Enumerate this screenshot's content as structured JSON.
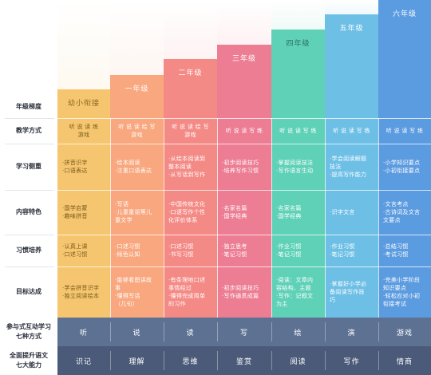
{
  "row_labels": {
    "grade_level": "年级梯度",
    "teaching_method": "教学方式",
    "learning_focus": "学习侧重",
    "content_features": "内容特色",
    "habit_building": "习惯培养",
    "goals": "目标达成",
    "interactive_methods": "参与式互动学习\n七种方式",
    "abilities": "全面提升语文\n七大能力"
  },
  "grades": [
    {
      "name": "幼小衔接",
      "color": "#f5c66f",
      "text_color": "#7a5b1e",
      "grade_text_color": "#8a6420",
      "teaching_method": "听 说 读 练\n游戏",
      "learning_focus": "·拼音识字\n·口语表达",
      "content_features": "·国学启蒙\n·趣味拼音",
      "habit_building": "·认真上课\n·口述习惯",
      "goals": "·学会拼音识字\n·独立阅读绘本"
    },
    {
      "name": "一年级",
      "color": "#f9a77e",
      "text_color": "#ffffff",
      "grade_text_color": "#ffffff",
      "teaching_method": "听 说 读 绘 写\n游戏",
      "learning_focus": "·绘本阅读\n·注重口语表达",
      "content_features": "·写话\n·儿童童谣等儿\n  童文学",
      "habit_building": "·口述习惯\n·倾色认知",
      "goals": "·能够看图讲故\n  事\n·懂得写话\n  （几句）"
    },
    {
      "name": "二年级",
      "color": "#f48a85",
      "text_color": "#ffffff",
      "grade_text_color": "#ffffff",
      "teaching_method": "听 说 读 绘 写\n游戏",
      "learning_focus": "·从绘本阅读到\n  整本阅读\n·从写话到写作",
      "content_features": "·中国传统文化\n·口语写作个性\n  化评价体系",
      "habit_building": "·口述习惯\n·书写习惯",
      "goals": "·有条理地口述\n  事情经过\n·懂得完成简单\n  的习作"
    },
    {
      "name": "三年级",
      "color": "#ec7d93",
      "text_color": "#ffffff",
      "grade_text_color": "#ffffff",
      "teaching_method": "听 说 读 写 练",
      "learning_focus": "·初步阅读技巧\n·培养写作习惯",
      "content_features": "·名家名篇\n·国学经典",
      "habit_building": "·独立思考\n·笔记习惯",
      "goals": "·初步阅读技巧\n·写作通贯成篇"
    },
    {
      "name": "四年级",
      "color": "#5fd1b7",
      "text_color": "#ffffff",
      "grade_text_color": "#2b6e62",
      "teaching_method": "听 说 读 写 练",
      "learning_focus": "·掌握阅读技法\n·写作语言生动",
      "content_features": "·名家名篇\n·国学经典",
      "habit_building": "·作业习惯\n·笔记习惯",
      "goals": "·阅读：文章内\n  容结构、主题\n·写作：记叙文\n  为主"
    },
    {
      "name": "五年级",
      "color": "#6ebfe6",
      "text_color": "#ffffff",
      "grade_text_color": "#ffffff",
      "teaching_method": "听 说 读 写 练",
      "learning_focus": "·学会阅读解题\n  技法\n·提高写作能力",
      "content_features": "·识字文言",
      "habit_building": "·作业习惯\n·笔记习惯",
      "goals": "·掌握好小学必\n  备阅读写作技\n  巧"
    },
    {
      "name": "六年级",
      "color": "#5b9be0",
      "text_color": "#ffffff",
      "grade_text_color": "#ffffff",
      "teaching_method": "听 说 读 写 练",
      "learning_focus": "·小学知识要点\n·小初衔接要点",
      "content_features": "·文言考点\n·古诗词及文言\n  文要点",
      "habit_building": "·总结习惯\n·考试习惯",
      "goals": "·完美小学阶段\n  知识要点\n·轻松应对小初\n  衔接考试"
    }
  ],
  "interactive_methods": [
    "听",
    "说",
    "读",
    "写",
    "绘",
    "演",
    "游戏"
  ],
  "abilities": [
    "识记",
    "理解",
    "思维",
    "鉴赏",
    "阅读",
    "写作",
    "情商"
  ],
  "band_colors": {
    "interactive_methods": "#5d7193",
    "abilities": "#4a5a78"
  }
}
